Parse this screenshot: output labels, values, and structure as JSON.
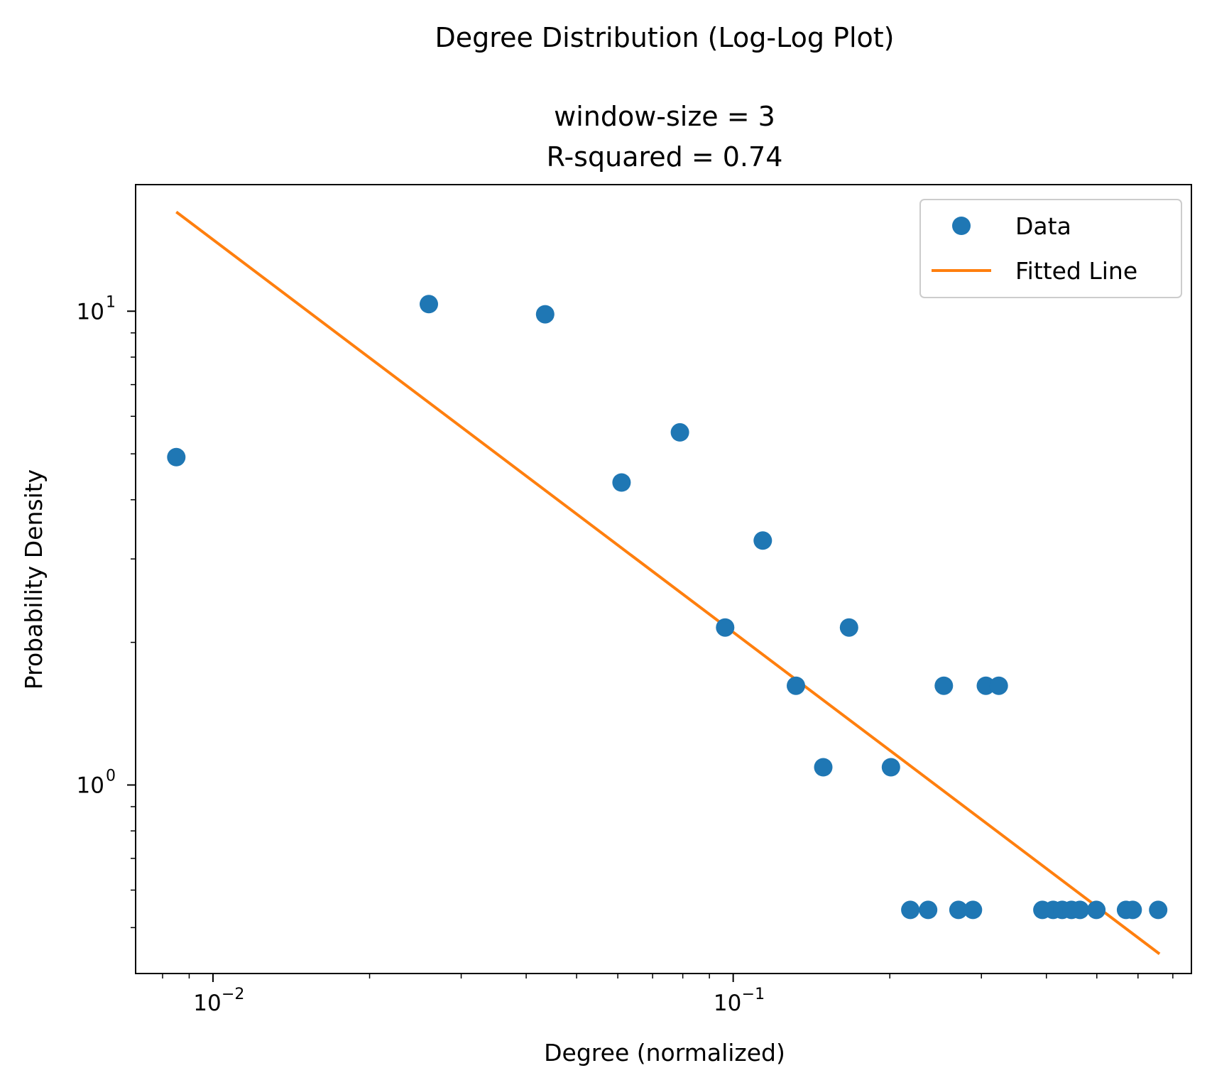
{
  "chart_data": {
    "type": "scatter",
    "title": "Degree Distribution (Log-Log Plot)",
    "subtitle_lines": [
      "window-size = 3",
      "R-squared = 0.74"
    ],
    "xlabel": "Degree (normalized)",
    "ylabel": "Probability Density",
    "xscale": "log",
    "yscale": "log",
    "xlim": [
      0.0071,
      0.76
    ],
    "ylim": [
      0.4,
      18.5
    ],
    "x_ticks": [
      {
        "value": 0.01,
        "base": "10",
        "exp": "−2"
      },
      {
        "value": 0.1,
        "base": "10",
        "exp": "−1"
      }
    ],
    "y_ticks": [
      {
        "value": 1,
        "base": "10",
        "exp": "0"
      },
      {
        "value": 10,
        "base": "10",
        "exp": "1"
      }
    ],
    "legend": {
      "position": "top-right",
      "entries": [
        "Data",
        "Fitted Line"
      ]
    },
    "colors": {
      "data": "#1f77b4",
      "fit": "#ff7f0e"
    },
    "series": [
      {
        "name": "Data",
        "kind": "points",
        "points": [
          [
            0.0085,
            4.92
          ],
          [
            0.026,
            10.35
          ],
          [
            0.0435,
            9.85
          ],
          [
            0.061,
            4.35
          ],
          [
            0.079,
            5.55
          ],
          [
            0.0965,
            2.15
          ],
          [
            0.114,
            3.28
          ],
          [
            0.132,
            1.62
          ],
          [
            0.149,
            1.09
          ],
          [
            0.167,
            2.15
          ],
          [
            0.201,
            1.09
          ],
          [
            0.219,
            0.545
          ],
          [
            0.237,
            0.545
          ],
          [
            0.254,
            1.62
          ],
          [
            0.271,
            0.545
          ],
          [
            0.289,
            0.545
          ],
          [
            0.306,
            1.62
          ],
          [
            0.324,
            1.62
          ],
          [
            0.393,
            0.545
          ],
          [
            0.412,
            0.545
          ],
          [
            0.429,
            0.545
          ],
          [
            0.447,
            0.545
          ],
          [
            0.464,
            0.545
          ],
          [
            0.499,
            0.545
          ],
          [
            0.569,
            0.545
          ],
          [
            0.586,
            0.545
          ],
          [
            0.656,
            0.545
          ]
        ]
      },
      {
        "name": "Fitted Line",
        "kind": "line",
        "points": [
          [
            0.0085,
            16.2
          ],
          [
            0.66,
            0.44
          ]
        ]
      }
    ]
  }
}
